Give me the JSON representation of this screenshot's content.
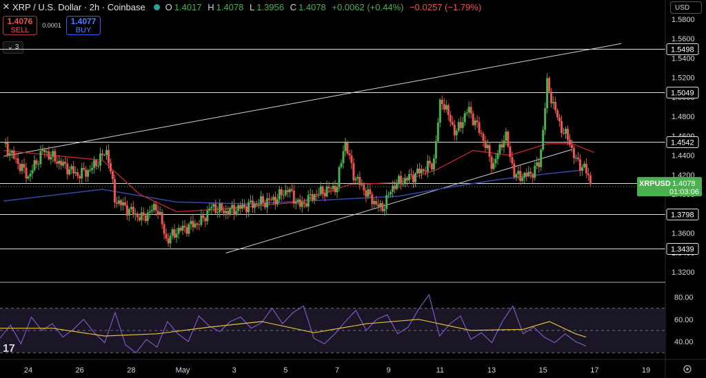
{
  "header": {
    "symbol_title": "XRP / U.S. Dollar · 2h · Coinbase",
    "open_label": "O",
    "open": "1.4017",
    "high_label": "H",
    "high": "1.4078",
    "low_label": "L",
    "low": "1.3956",
    "close_label": "C",
    "close": "1.4078",
    "change": "+0.0062 (+0.44%)",
    "change2": "−0.0257 (−1.79%)"
  },
  "trade": {
    "sell_price": "1.4076",
    "sell_label": "SELL",
    "spread": "0.0001",
    "buy_price": "1.4077",
    "buy_label": "BUY"
  },
  "indicator_toggle": "3",
  "currency_selector": "USD",
  "logo_text": "17",
  "colors": {
    "background": "#000000",
    "bull": "#4caf50",
    "bear": "#ef5350",
    "ma_fast": "#c62828",
    "ma_slow": "#3949ab",
    "rsi": "#7e57c2",
    "rsi_ma": "#e6c235",
    "last_price": "#4caf50"
  },
  "chart_data": [
    {
      "type": "candlestick",
      "symbol": "XRPUSD",
      "price_axis_ticks": [
        "1.5800",
        "1.5600",
        "1.5400",
        "1.5200",
        "1.5000",
        "1.4800",
        "1.4600",
        "1.4400",
        "1.4200",
        "1.4000",
        "1.3800",
        "1.3600",
        "1.3400",
        "1.3200"
      ],
      "x_tick_labels": [
        "24",
        "26",
        "28",
        "May",
        "3",
        "5",
        "7",
        "9",
        "11",
        "13",
        "15",
        "17",
        "19"
      ],
      "horizontal_levels": [
        "1.5498",
        "1.5049",
        "1.4542",
        "1.4115",
        "1.3798",
        "1.3439"
      ],
      "last_price_label": "XRPUSD",
      "last_price": "1.4078",
      "countdown": "01:03:06",
      "trend_channel": {
        "lower": [
          [
            "May 2",
            1.3395
          ],
          [
            "May 16",
            1.446
          ]
        ],
        "upper": [
          [
            "Apr 23",
            1.439
          ],
          [
            "May 18",
            1.555
          ]
        ]
      },
      "close_path": [
        [
          "Apr 23",
          1.452
        ],
        [
          "Apr 24",
          1.418
        ],
        [
          "Apr 24.6",
          1.445
        ],
        [
          "Apr 25.3",
          1.432
        ],
        [
          "Apr 26",
          1.42
        ],
        [
          "Apr 26.5",
          1.425
        ],
        [
          "Apr 27.2",
          1.445
        ],
        [
          "Apr 27.5",
          1.395
        ],
        [
          "Apr 28",
          1.385
        ],
        [
          "Apr 28.6",
          1.375
        ],
        [
          "Apr 29.2",
          1.388
        ],
        [
          "Apr 29.6",
          1.352
        ],
        [
          "Apr 30",
          1.362
        ],
        [
          "May 1",
          1.372
        ],
        [
          "May 1.4",
          1.387
        ],
        [
          "May 2",
          1.382
        ],
        [
          "May 3",
          1.389
        ],
        [
          "May 4",
          1.395
        ],
        [
          "May 4.5",
          1.405
        ],
        [
          "May 5",
          1.388
        ],
        [
          "May 5.6",
          1.4
        ],
        [
          "May 6.5",
          1.408
        ],
        [
          "May 6.8",
          1.455
        ],
        [
          "May 7.2",
          1.418
        ],
        [
          "May 7.8",
          1.398
        ],
        [
          "May 8.3",
          1.384
        ],
        [
          "May 8.8",
          1.41
        ],
        [
          "May 9.5",
          1.418
        ],
        [
          "May 10.4",
          1.432
        ],
        [
          "May 10.7",
          1.5
        ],
        [
          "May 11.3",
          1.462
        ],
        [
          "May 11.8",
          1.488
        ],
        [
          "May 12.4",
          1.458
        ],
        [
          "May 12.8",
          1.428
        ],
        [
          "May 13.3",
          1.462
        ],
        [
          "May 13.7",
          1.418
        ],
        [
          "May 14.3",
          1.42
        ],
        [
          "May 14.7",
          1.432
        ],
        [
          "May 15",
          1.513
        ],
        [
          "May 15.5",
          1.472
        ],
        [
          "May 15.9",
          1.454
        ],
        [
          "May 16.2",
          1.432
        ],
        [
          "May 16.5",
          1.428
        ],
        [
          "May 16.8",
          1.408
        ]
      ],
      "moving_average_fast": [
        [
          "Apr 23",
          1.445
        ],
        [
          "Apr 27",
          1.435
        ],
        [
          "Apr 28.5",
          1.4
        ],
        [
          "Apr 30",
          1.382
        ],
        [
          "May 2",
          1.385
        ],
        [
          "May 5",
          1.392
        ],
        [
          "May 7",
          1.41
        ],
        [
          "May 9",
          1.412
        ],
        [
          "May 10.5",
          1.425
        ],
        [
          "May 12",
          1.445
        ],
        [
          "May 13.5",
          1.44
        ],
        [
          "May 15",
          1.452
        ],
        [
          "May 16",
          1.452
        ],
        [
          "May 16.9",
          1.443
        ]
      ],
      "moving_average_slow": [
        [
          "Apr 23",
          1.393
        ],
        [
          "Apr 27",
          1.405
        ],
        [
          "Apr 30",
          1.392
        ],
        [
          "May 3",
          1.39
        ],
        [
          "May 6",
          1.394
        ],
        [
          "May 9",
          1.398
        ],
        [
          "May 11",
          1.407
        ],
        [
          "May 13",
          1.415
        ],
        [
          "May 15",
          1.421
        ],
        [
          "May 16.5",
          1.425
        ]
      ]
    },
    {
      "type": "line",
      "title": "",
      "y_ticks": [
        "80.00",
        "60.00",
        "40.00"
      ],
      "ylim": [
        24,
        92
      ],
      "bands": [
        70,
        50,
        30
      ],
      "series": [
        {
          "values": [
            [
              0,
              43
            ],
            [
              0.4,
              55
            ],
            [
              0.8,
              38
            ],
            [
              1.2,
              62
            ],
            [
              1.6,
              50
            ],
            [
              2,
              56
            ],
            [
              2.4,
              44
            ],
            [
              2.8,
              51
            ],
            [
              3.2,
              60
            ],
            [
              3.6,
              48
            ],
            [
              4,
              39
            ],
            [
              4.4,
              66
            ],
            [
              4.8,
              37
            ],
            [
              5.2,
              30
            ],
            [
              5.6,
              42
            ],
            [
              6,
              35
            ],
            [
              6.4,
              58
            ],
            [
              6.8,
              47
            ],
            [
              7.2,
              40
            ],
            [
              7.6,
              63
            ],
            [
              8,
              54
            ],
            [
              8.4,
              49
            ],
            [
              8.8,
              58
            ],
            [
              9.2,
              62
            ],
            [
              9.6,
              52
            ],
            [
              10,
              57
            ],
            [
              10.4,
              70
            ],
            [
              10.8,
              56
            ],
            [
              11.2,
              66
            ],
            [
              11.6,
              72
            ],
            [
              12,
              43
            ],
            [
              12.4,
              38
            ],
            [
              12.8,
              47
            ],
            [
              13.2,
              58
            ],
            [
              13.6,
              68
            ],
            [
              14,
              50
            ],
            [
              14.4,
              60
            ],
            [
              14.8,
              64
            ],
            [
              15.2,
              47
            ],
            [
              15.6,
              53
            ],
            [
              16,
              69
            ],
            [
              16.4,
              82
            ],
            [
              16.8,
              45
            ],
            [
              17.2,
              56
            ],
            [
              17.6,
              63
            ],
            [
              18,
              42
            ],
            [
              18.4,
              48
            ],
            [
              18.8,
              39
            ],
            [
              19.2,
              58
            ],
            [
              19.6,
              72
            ],
            [
              20,
              47
            ],
            [
              20.4,
              53
            ],
            [
              20.8,
              44
            ],
            [
              21.2,
              39
            ],
            [
              21.6,
              47
            ],
            [
              22,
              40
            ],
            [
              22.4,
              36
            ]
          ]
        },
        {
          "values": [
            [
              0,
              52
            ],
            [
              2,
              52
            ],
            [
              4,
              45
            ],
            [
              6,
              47
            ],
            [
              8,
              53
            ],
            [
              10,
              58
            ],
            [
              12,
              48
            ],
            [
              14,
              56
            ],
            [
              16,
              60
            ],
            [
              18,
              50
            ],
            [
              20,
              51
            ],
            [
              21,
              58
            ],
            [
              22,
              47
            ],
            [
              22.4,
              44
            ]
          ]
        }
      ]
    }
  ]
}
